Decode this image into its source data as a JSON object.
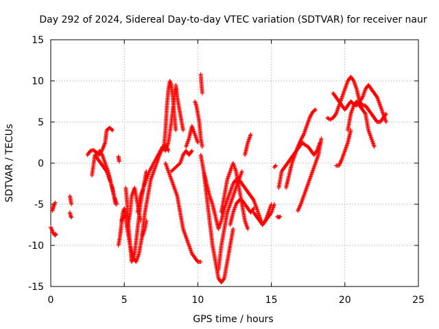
{
  "chart_data": {
    "type": "scatter",
    "title": "Day 292 of 2024, Sidereal Day-to-day VTEC variation (SDTVAR) for receiver naur",
    "xlabel": "GPS time / hours",
    "ylabel": "SDTVAR / TECUs",
    "xlim": [
      0,
      25
    ],
    "ylim": [
      -15,
      15
    ],
    "xticks": [
      "0",
      "5",
      "10",
      "15",
      "20",
      "25"
    ],
    "yticks": [
      "15",
      "10",
      "5",
      "0",
      "-5",
      "-10",
      "-15"
    ],
    "grid": true,
    "marker": "plus",
    "color": "#ff0000",
    "series": [
      {
        "name": "SDTVAR",
        "segments": [
          {
            "x": [
              0.0,
              0.1,
              0.2,
              0.3,
              0.35
            ],
            "y": [
              -7.8,
              -8.2,
              -8.6,
              -8.8,
              -8.6
            ]
          },
          {
            "x": [
              0.1,
              0.2,
              0.3
            ],
            "y": [
              -5.8,
              -5.2,
              -4.8
            ]
          },
          {
            "x": [
              1.3,
              1.35,
              1.4
            ],
            "y": [
              -6.0,
              -6.4,
              -6.6
            ]
          },
          {
            "x": [
              1.3,
              1.35,
              1.4
            ],
            "y": [
              -4.0,
              -4.5,
              -5.0
            ]
          },
          {
            "x": [
              2.5,
              2.7,
              2.9,
              3.1,
              3.3,
              3.5,
              3.7,
              3.8,
              4.0,
              4.2
            ],
            "y": [
              1.0,
              1.5,
              1.6,
              1.3,
              1.0,
              1.6,
              2.5,
              4.0,
              4.3,
              4.0
            ]
          },
          {
            "x": [
              2.8,
              3.0,
              3.2,
              3.4,
              3.6,
              3.8,
              4.0,
              4.2,
              4.4
            ],
            "y": [
              -1.5,
              1.0,
              0.5,
              0.0,
              -0.5,
              -1.0,
              -2.0,
              -3.0,
              -5.0
            ]
          },
          {
            "x": [
              3.3,
              3.5,
              3.7,
              3.9,
              4.1,
              4.3,
              4.5
            ],
            "y": [
              1.5,
              1.0,
              0.0,
              -1.0,
              -2.5,
              -4.0,
              -5.0
            ]
          },
          {
            "x": [
              4.6,
              4.65
            ],
            "y": [
              0.8,
              0.2
            ]
          },
          {
            "x": [
              4.6,
              4.7,
              4.8,
              4.9,
              5.0,
              5.2,
              5.4,
              5.6,
              5.8,
              6.0,
              6.2,
              6.4,
              6.5
            ],
            "y": [
              -10.0,
              -9.0,
              -7.5,
              -6.0,
              -5.5,
              -8.0,
              -10.0,
              -11.5,
              -12.0,
              -11.0,
              -9.0,
              -8.0,
              -7.0
            ]
          },
          {
            "x": [
              4.8,
              5.0,
              5.1
            ],
            "y": [
              -7.0,
              -6.5,
              -6.0
            ]
          },
          {
            "x": [
              5.1,
              5.2,
              5.3,
              5.4,
              5.5,
              5.7,
              5.9,
              6.1,
              6.3,
              6.5
            ],
            "y": [
              -3.0,
              -5.0,
              -8.0,
              -10.0,
              -12.0,
              -11.0,
              -8.0,
              -5.0,
              -3.0,
              -1.0
            ]
          },
          {
            "x": [
              5.2,
              5.4,
              5.5,
              5.7,
              5.9,
              6.1
            ],
            "y": [
              -8.0,
              -6.0,
              -4.0,
              -3.0,
              -5.0,
              -7.0
            ]
          },
          {
            "x": [
              5.9,
              6.1,
              6.3,
              6.5,
              6.7,
              7.0,
              7.3,
              7.6,
              7.8,
              8.0,
              8.2,
              8.4,
              8.5
            ],
            "y": [
              -6.0,
              -4.0,
              -3.0,
              -2.0,
              -1.0,
              0.0,
              1.0,
              2.0,
              1.5,
              2.5,
              5.0,
              8.0,
              9.0
            ]
          },
          {
            "x": [
              6.2,
              6.4,
              6.6,
              6.8,
              7.0,
              7.2,
              7.4,
              7.6,
              7.8,
              8.0
            ],
            "y": [
              -9.0,
              -6.0,
              -4.0,
              -2.0,
              -1.0,
              0.0,
              1.0,
              1.8,
              2.2,
              1.5
            ]
          },
          {
            "x": [
              7.7,
              7.8,
              7.9,
              8.0,
              8.1,
              8.2,
              8.3,
              8.4,
              8.5
            ],
            "y": [
              2.0,
              4.0,
              7.0,
              9.0,
              10.0,
              9.5,
              8.0,
              6.0,
              4.0
            ]
          },
          {
            "x": [
              7.8,
              8.0,
              8.2,
              8.4,
              8.6,
              8.8,
              9.0,
              9.2,
              9.4,
              9.6,
              9.8,
              10.0,
              10.2
            ],
            "y": [
              0.0,
              -1.0,
              -2.0,
              -3.0,
              -4.0,
              -6.0,
              -8.0,
              -9.0,
              -10.0,
              -11.0,
              -11.5,
              -12.0,
              -12.0
            ]
          },
          {
            "x": [
              8.2,
              8.5,
              8.8,
              9.0,
              9.2,
              9.4,
              9.6
            ],
            "y": [
              -1.0,
              -0.5,
              0.0,
              1.0,
              1.5,
              1.0,
              1.5
            ]
          },
          {
            "x": [
              8.5,
              8.6,
              8.7,
              8.8,
              8.9,
              9.0
            ],
            "y": [
              9.5,
              8.0,
              7.0,
              6.0,
              5.0,
              4.0
            ]
          },
          {
            "x": [
              9.2,
              9.4,
              9.6,
              9.8,
              10.0
            ],
            "y": [
              2.0,
              3.0,
              4.5,
              3.5,
              2.5
            ]
          },
          {
            "x": [
              9.8,
              9.9,
              10.0,
              10.1,
              10.2,
              10.3
            ],
            "y": [
              7.5,
              7.0,
              6.0,
              5.0,
              3.0,
              2.0
            ]
          },
          {
            "x": [
              10.2,
              10.25,
              10.3
            ],
            "y": [
              10.8,
              9.5,
              8.5
            ]
          },
          {
            "x": [
              10.2,
              10.4,
              10.6,
              10.8,
              11.0,
              11.2,
              11.4,
              11.6,
              11.8,
              12.0,
              12.2,
              12.4
            ],
            "y": [
              1.0,
              -1.0,
              -4.0,
              -7.0,
              -10.0,
              -12.0,
              -14.0,
              -14.5,
              -14.0,
              -12.0,
              -10.0,
              -8.0
            ]
          },
          {
            "x": [
              10.4,
              10.6,
              10.8,
              11.0,
              11.2,
              11.4,
              11.6,
              11.8,
              12.0,
              12.2,
              12.4,
              12.6
            ],
            "y": [
              -1.0,
              -2.5,
              -4.0,
              -5.0,
              -6.5,
              -8.0,
              -7.0,
              -5.5,
              -4.5,
              -3.5,
              -2.5,
              -2.0
            ]
          },
          {
            "x": [
              11.4,
              11.6,
              11.8,
              12.0,
              12.2,
              12.4,
              12.6,
              12.8,
              13.0
            ],
            "y": [
              -13.0,
              -10.0,
              -8.0,
              -6.0,
              -5.0,
              -4.0,
              -3.0,
              -2.0,
              -1.0
            ]
          },
          {
            "x": [
              11.6,
              11.8,
              12.0,
              12.2,
              12.4,
              12.6,
              12.8,
              13.0,
              13.2,
              13.4
            ],
            "y": [
              -6.0,
              -4.0,
              -2.0,
              -1.0,
              0.0,
              -1.0,
              -3.0,
              -5.0,
              -7.0,
              -8.0
            ]
          },
          {
            "x": [
              12.2,
              12.4,
              12.6,
              12.8,
              13.0,
              13.2,
              13.4,
              13.6,
              13.8
            ],
            "y": [
              -7.5,
              -6.0,
              -5.0,
              -4.5,
              -4.5,
              -5.0,
              -5.5,
              -6.0,
              -5.5
            ]
          },
          {
            "x": [
              12.8,
              13.0,
              13.2,
              13.4,
              13.6,
              13.8,
              14.0,
              14.2,
              14.4,
              14.6,
              14.8,
              15.0
            ],
            "y": [
              -2.0,
              -2.5,
              -3.0,
              -3.5,
              -4.0,
              -4.5,
              -5.5,
              -6.5,
              -7.5,
              -7.0,
              -6.0,
              -5.0
            ]
          },
          {
            "x": [
              13.2,
              13.4,
              13.6
            ],
            "y": [
              1.0,
              2.5,
              3.5
            ]
          },
          {
            "x": [
              13.8,
              14.0,
              14.2,
              14.4,
              14.6,
              14.8,
              15.0,
              15.2
            ],
            "y": [
              -6.0,
              -6.5,
              -7.0,
              -7.5,
              -7.0,
              -6.5,
              -6.0,
              -5.0
            ]
          },
          {
            "x": [
              15.2,
              15.3
            ],
            "y": [
              -0.5,
              -0.3
            ]
          },
          {
            "x": [
              15.4,
              15.5,
              15.6
            ],
            "y": [
              -6.5,
              -6.6,
              -6.5
            ]
          },
          {
            "x": [
              15.5,
              15.7,
              15.9,
              16.1,
              16.3,
              16.5,
              16.7,
              16.9,
              17.1,
              17.3,
              17.5,
              17.7,
              17.9,
              18.1,
              18.3
            ],
            "y": [
              -3.0,
              -1.0,
              -0.5,
              0.0,
              0.5,
              1.0,
              1.5,
              2.0,
              2.5,
              2.2,
              2.0,
              1.5,
              1.0,
              1.5,
              2.5
            ]
          },
          {
            "x": [
              16.0,
              16.2,
              16.4,
              16.6,
              16.8,
              17.0,
              17.2,
              17.4,
              17.6,
              17.8,
              18.0
            ],
            "y": [
              -3.0,
              -1.5,
              0.0,
              1.0,
              2.0,
              2.8,
              3.5,
              4.5,
              5.5,
              6.2,
              6.5
            ]
          },
          {
            "x": [
              16.8,
              17.0,
              17.2,
              17.4,
              17.6,
              17.8,
              18.0,
              18.2,
              18.4
            ],
            "y": [
              -5.8,
              -5.0,
              -4.0,
              -3.0,
              -2.0,
              -1.0,
              0.0,
              1.0,
              3.0
            ]
          },
          {
            "x": [
              18.8,
              19.0,
              19.2,
              19.4,
              19.6,
              19.8,
              20.0,
              20.2,
              20.4,
              20.6,
              20.8,
              21.0,
              21.2,
              21.4,
              21.6,
              21.8,
              22.0,
              22.2,
              22.4,
              22.6,
              22.8
            ],
            "y": [
              5.5,
              5.3,
              5.5,
              6.0,
              7.0,
              8.0,
              9.0,
              10.0,
              10.5,
              10.0,
              9.0,
              7.5,
              7.0,
              7.0,
              6.5,
              6.0,
              5.5,
              5.0,
              5.0,
              5.5,
              6.0
            ]
          },
          {
            "x": [
              19.2,
              19.4,
              19.6,
              19.8,
              20.0,
              20.2,
              20.4,
              20.6,
              20.8,
              21.0,
              21.2,
              21.4,
              21.6,
              21.8,
              22.0,
              22.2,
              22.4,
              22.6,
              22.8
            ],
            "y": [
              8.5,
              8.0,
              7.5,
              7.0,
              6.5,
              7.0,
              7.5,
              7.2,
              7.0,
              7.5,
              8.0,
              9.0,
              9.5,
              9.0,
              8.5,
              8.0,
              7.0,
              6.0,
              5.0
            ]
          },
          {
            "x": [
              19.4,
              19.6,
              19.8,
              20.0,
              20.2,
              20.4
            ],
            "y": [
              -0.3,
              -0.3,
              0.5,
              1.5,
              2.5,
              4.0
            ]
          },
          {
            "x": [
              20.2,
              20.4,
              20.6,
              20.8,
              21.0,
              21.2,
              21.4,
              21.6,
              21.8,
              22.0
            ],
            "y": [
              4.0,
              6.0,
              7.0,
              7.5,
              7.0,
              6.5,
              6.0,
              4.0,
              3.0,
              2.0
            ]
          }
        ]
      }
    ]
  }
}
